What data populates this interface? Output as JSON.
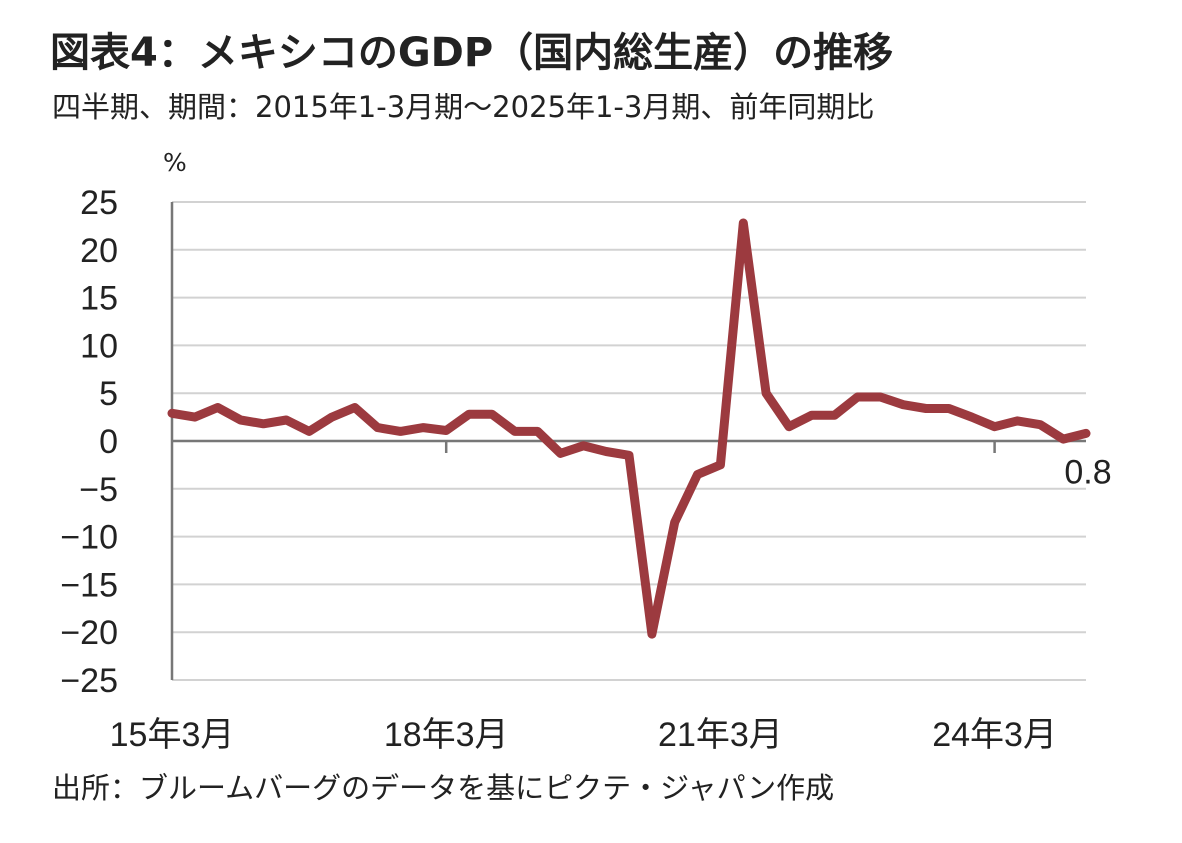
{
  "header": {
    "title": "図表4：メキシコのGDP（国内総生産）の推移",
    "subtitle": "四半期、期間：2015年1-3月期～2025年1-3月期、前年同期比",
    "unit": "%"
  },
  "footer": {
    "source": "出所：ブルームバーグのデータを基にピクテ・ジャパン作成"
  },
  "chart_data": {
    "type": "line",
    "title": "図表4：メキシコのGDP（国内総生産）の推移",
    "ylabel": "%",
    "ylim": [
      -25,
      25
    ],
    "yticks": [
      25,
      20,
      15,
      10,
      5,
      0,
      -5,
      -10,
      -15,
      -20,
      -25
    ],
    "ytick_labels": [
      "25",
      "20",
      "15",
      "10",
      "5",
      "0",
      "−5",
      "−10",
      "−15",
      "−20",
      "−25"
    ],
    "grid": true,
    "line_color": "#9c3a3f",
    "x_tick_labels": [
      {
        "label": "15年3月",
        "index": 0
      },
      {
        "label": "18年3月",
        "index": 12
      },
      {
        "label": "21年3月",
        "index": 24
      },
      {
        "label": "24年3月",
        "index": 36
      }
    ],
    "x": [
      "2015Q1",
      "2015Q2",
      "2015Q3",
      "2015Q4",
      "2016Q1",
      "2016Q2",
      "2016Q3",
      "2016Q4",
      "2017Q1",
      "2017Q2",
      "2017Q3",
      "2017Q4",
      "2018Q1",
      "2018Q2",
      "2018Q3",
      "2018Q4",
      "2019Q1",
      "2019Q2",
      "2019Q3",
      "2019Q4",
      "2020Q1",
      "2020Q2",
      "2020Q3",
      "2020Q4",
      "2021Q1",
      "2021Q2",
      "2021Q3",
      "2021Q4",
      "2022Q1",
      "2022Q2",
      "2022Q3",
      "2022Q4",
      "2023Q1",
      "2023Q2",
      "2023Q3",
      "2023Q4",
      "2024Q1",
      "2024Q2",
      "2024Q3",
      "2024Q4",
      "2025Q1"
    ],
    "series": [
      {
        "values": [
          2.9,
          2.5,
          3.5,
          2.2,
          1.8,
          2.2,
          1.0,
          2.5,
          3.5,
          1.4,
          1.0,
          1.4,
          1.1,
          2.8,
          2.8,
          1.0,
          1.0,
          -1.3,
          -0.5,
          -1.1,
          -1.5,
          -20.2,
          -8.5,
          -3.5,
          -2.5,
          22.8,
          5.0,
          1.5,
          2.7,
          2.7,
          4.6,
          4.6,
          3.8,
          3.4,
          3.4,
          2.5,
          1.5,
          2.1,
          1.7,
          0.2,
          0.8
        ]
      }
    ],
    "annotation": "0.8"
  }
}
